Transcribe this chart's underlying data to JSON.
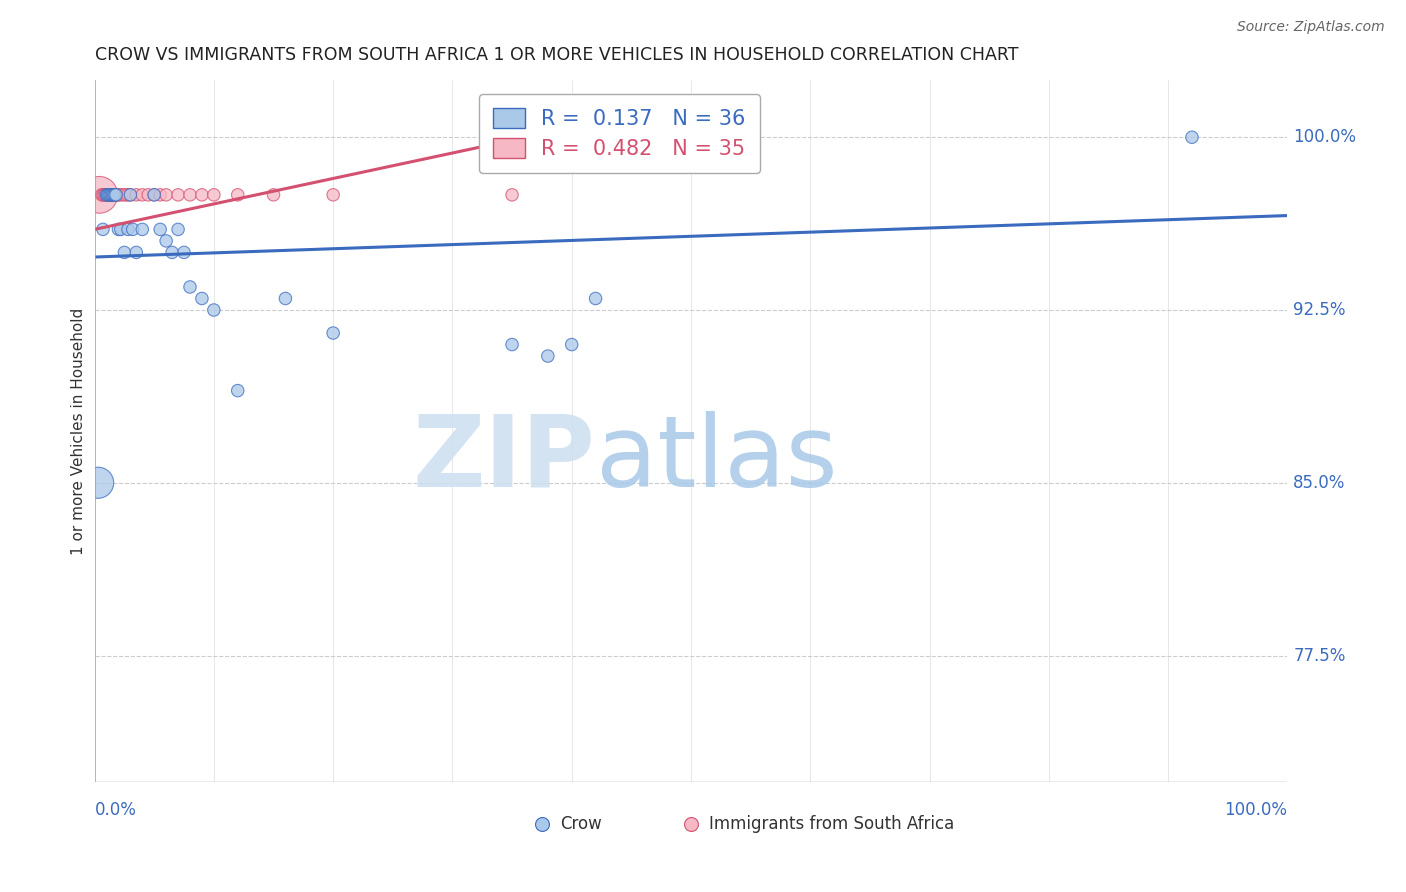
{
  "title": "CROW VS IMMIGRANTS FROM SOUTH AFRICA 1 OR MORE VEHICLES IN HOUSEHOLD CORRELATION CHART",
  "source": "Source: ZipAtlas.com",
  "ylabel": "1 or more Vehicles in Household",
  "ytick_labels": [
    "77.5%",
    "85.0%",
    "92.5%",
    "100.0%"
  ],
  "ytick_values": [
    0.775,
    0.85,
    0.925,
    1.0
  ],
  "xlim": [
    0.0,
    1.0
  ],
  "ylim": [
    0.72,
    1.025
  ],
  "legend_blue_r": "0.137",
  "legend_blue_n": "36",
  "legend_pink_r": "0.482",
  "legend_pink_n": "35",
  "blue_color": "#aac8e8",
  "pink_color": "#f5b8c4",
  "line_blue": "#3a6bbf",
  "line_pink": "#d45070",
  "crow_x": [
    0.003,
    0.007,
    0.01,
    0.011,
    0.012,
    0.013,
    0.014,
    0.015,
    0.016,
    0.017,
    0.018,
    0.02,
    0.022,
    0.025,
    0.028,
    0.03,
    0.032,
    0.035,
    0.04,
    0.05,
    0.055,
    0.06,
    0.065,
    0.07,
    0.075,
    0.08,
    0.09,
    0.1,
    0.12,
    0.16,
    0.2,
    0.35,
    0.38,
    0.4,
    0.42,
    0.92
  ],
  "crow_y": [
    0.85,
    0.96,
    0.975,
    0.975,
    0.975,
    0.975,
    0.975,
    0.975,
    0.975,
    0.975,
    0.975,
    0.96,
    0.96,
    0.95,
    0.96,
    0.975,
    0.96,
    0.95,
    0.96,
    0.975,
    0.96,
    0.955,
    0.95,
    0.96,
    0.95,
    0.935,
    0.93,
    0.925,
    0.89,
    0.93,
    0.915,
    0.91,
    0.905,
    0.91,
    0.93,
    1.0
  ],
  "crow_sizes": [
    500,
    80,
    80,
    80,
    80,
    80,
    80,
    80,
    80,
    80,
    80,
    80,
    80,
    80,
    80,
    80,
    80,
    80,
    80,
    80,
    80,
    80,
    80,
    80,
    80,
    80,
    80,
    80,
    80,
    80,
    80,
    80,
    80,
    80,
    80,
    80
  ],
  "sa_x": [
    0.004,
    0.006,
    0.007,
    0.008,
    0.009,
    0.01,
    0.011,
    0.012,
    0.013,
    0.014,
    0.015,
    0.016,
    0.017,
    0.018,
    0.019,
    0.02,
    0.022,
    0.024,
    0.026,
    0.028,
    0.03,
    0.035,
    0.04,
    0.045,
    0.05,
    0.055,
    0.06,
    0.07,
    0.08,
    0.09,
    0.1,
    0.12,
    0.15,
    0.2,
    0.35
  ],
  "sa_y": [
    0.975,
    0.975,
    0.975,
    0.975,
    0.975,
    0.975,
    0.975,
    0.975,
    0.975,
    0.975,
    0.975,
    0.975,
    0.975,
    0.975,
    0.975,
    0.975,
    0.975,
    0.975,
    0.975,
    0.975,
    0.975,
    0.975,
    0.975,
    0.975,
    0.975,
    0.975,
    0.975,
    0.975,
    0.975,
    0.975,
    0.975,
    0.975,
    0.975,
    0.975,
    0.975
  ],
  "sa_sizes": [
    700,
    80,
    80,
    80,
    80,
    80,
    80,
    80,
    80,
    80,
    80,
    80,
    80,
    80,
    80,
    80,
    80,
    80,
    80,
    80,
    80,
    80,
    80,
    80,
    80,
    80,
    80,
    80,
    80,
    80,
    80,
    80,
    80,
    80,
    80
  ],
  "watermark_zip": "ZIP",
  "watermark_atlas": "atlas",
  "background_color": "#ffffff",
  "grid_color": "#cccccc",
  "blue_line_x0": 0.0,
  "blue_line_y0": 0.948,
  "blue_line_x1": 1.0,
  "blue_line_y1": 0.966,
  "pink_line_x0": 0.0,
  "pink_line_y0": 0.96,
  "pink_line_x1": 0.38,
  "pink_line_y1": 1.002
}
